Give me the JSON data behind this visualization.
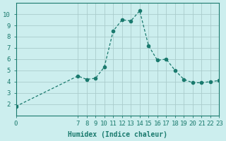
{
  "x": [
    0,
    7,
    8,
    9,
    10,
    11,
    12,
    13,
    14,
    15,
    16,
    17,
    18,
    19,
    20,
    21,
    22,
    23
  ],
  "y": [
    1.8,
    4.5,
    4.2,
    4.3,
    5.3,
    8.5,
    9.5,
    9.4,
    10.3,
    7.2,
    5.9,
    6.0,
    5.0,
    4.2,
    3.9,
    3.9,
    4.0,
    4.1
  ],
  "line_color": "#1a7a6e",
  "marker": "o",
  "marker_size": 3,
  "bg_color": "#cceeee",
  "grid_color": "#aacccc",
  "xlabel": "Humidex (Indice chaleur)",
  "ylabel": "",
  "xlim": [
    0,
    23
  ],
  "ylim": [
    1,
    11
  ],
  "yticks": [
    2,
    3,
    4,
    5,
    6,
    7,
    8,
    9,
    10
  ],
  "xticks": [
    0,
    7,
    8,
    9,
    10,
    11,
    12,
    13,
    14,
    15,
    16,
    17,
    18,
    19,
    20,
    21,
    22,
    23
  ],
  "xtick_labels": [
    "0",
    "7",
    "8",
    "9",
    "10",
    "11",
    "12",
    "13",
    "14",
    "15",
    "16",
    "17",
    "18",
    "19",
    "20",
    "21",
    "22",
    "23"
  ],
  "ytick_labels": [
    "2",
    "3",
    "4",
    "5",
    "6",
    "7",
    "8",
    "9",
    "10"
  ],
  "tick_color": "#1a7a6e",
  "axis_color": "#1a7a6e",
  "label_fontsize": 7,
  "tick_fontsize": 6.5
}
